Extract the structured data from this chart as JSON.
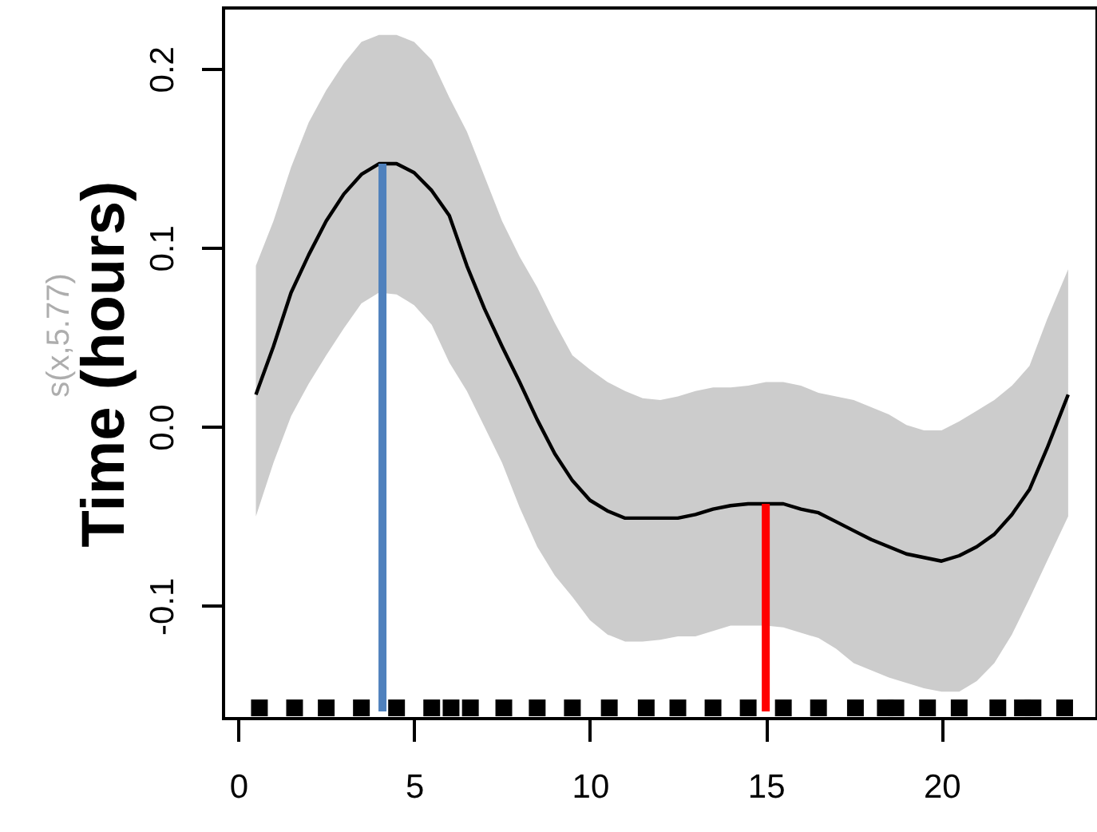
{
  "chart_data": {
    "type": "line",
    "ylabel": "Time (hours)",
    "annotations": [
      "s(x,5.77)"
    ],
    "xlim": [
      -0.42,
      24.42
    ],
    "xticks": [
      0,
      5,
      10,
      15,
      20
    ],
    "ylim": [
      -0.163,
      0.234
    ],
    "yticks": [
      {
        "value": -0.1,
        "label": "-0.1"
      },
      {
        "value": 0,
        "label": "0.0"
      },
      {
        "value": 0.1,
        "label": "0.1"
      },
      {
        "value": 0.2,
        "label": "0.2"
      }
    ],
    "grid": false,
    "line_style": "solid",
    "marker": "none",
    "series": [
      {
        "color": "#000000",
        "x": [
          0.5,
          1,
          1.5,
          2,
          2.5,
          3,
          3.5,
          4,
          4.5,
          5,
          5.5,
          6,
          6.5,
          7,
          7.5,
          8,
          8.5,
          9,
          9.5,
          10,
          10.5,
          11,
          11.5,
          12,
          12.5,
          13,
          13.5,
          14,
          14.5,
          15,
          15.5,
          16,
          16.5,
          17,
          17.5,
          18,
          18.5,
          19,
          19.5,
          20,
          20.5,
          21,
          21.5,
          22,
          22.5,
          23,
          23.6
        ],
        "values": [
          0.018,
          0.045,
          0.075,
          0.096,
          0.115,
          0.13,
          0.141,
          0.147,
          0.147,
          0.142,
          0.132,
          0.118,
          0.09,
          0.066,
          0.045,
          0.025,
          0.004,
          -0.015,
          -0.03,
          -0.041,
          -0.047,
          -0.051,
          -0.051,
          -0.051,
          -0.051,
          -0.049,
          -0.046,
          -0.044,
          -0.043,
          -0.043,
          -0.043,
          -0.046,
          -0.048,
          -0.053,
          -0.058,
          -0.063,
          -0.067,
          -0.071,
          -0.073,
          -0.075,
          -0.072,
          -0.067,
          -0.06,
          -0.049,
          -0.035,
          -0.012,
          0.018
        ],
        "upper": [
          0.09,
          0.115,
          0.145,
          0.17,
          0.188,
          0.203,
          0.215,
          0.219,
          0.219,
          0.215,
          0.205,
          0.184,
          0.165,
          0.14,
          0.115,
          0.095,
          0.078,
          0.058,
          0.04,
          0.032,
          0.025,
          0.02,
          0.016,
          0.015,
          0.017,
          0.02,
          0.022,
          0.022,
          0.023,
          0.025,
          0.025,
          0.023,
          0.019,
          0.017,
          0.015,
          0.011,
          0.007,
          0.001,
          -0.002,
          -0.002,
          0.003,
          0.009,
          0.015,
          0.023,
          0.034,
          0.06,
          0.088
        ],
        "lower": [
          -0.05,
          -0.02,
          0.006,
          0.024,
          0.04,
          0.055,
          0.069,
          0.075,
          0.074,
          0.068,
          0.057,
          0.036,
          0.02,
          0.0,
          -0.02,
          -0.045,
          -0.067,
          -0.083,
          -0.095,
          -0.108,
          -0.116,
          -0.12,
          -0.12,
          -0.119,
          -0.117,
          -0.117,
          -0.114,
          -0.111,
          -0.111,
          -0.111,
          -0.112,
          -0.115,
          -0.118,
          -0.124,
          -0.132,
          -0.136,
          -0.14,
          -0.143,
          -0.146,
          -0.148,
          -0.148,
          -0.142,
          -0.132,
          -0.116,
          -0.096,
          -0.075,
          -0.05
        ]
      },
      {
        "type": "scatter",
        "marker": "square",
        "color": "#000000",
        "x": [
          0.6,
          1.6,
          2.5,
          3.5,
          4.5,
          5.5,
          6.05,
          6.6,
          7.55,
          8.5,
          9.5,
          10.55,
          11.6,
          12.5,
          13.5,
          14.5,
          15.5,
          16.5,
          17.55,
          18.4,
          18.7,
          19.6,
          20.5,
          21.6,
          22.3,
          22.6,
          23.5
        ],
        "values": [
          -0.157,
          -0.157,
          -0.157,
          -0.157,
          -0.157,
          -0.157,
          -0.157,
          -0.157,
          -0.157,
          -0.157,
          -0.157,
          -0.157,
          -0.157,
          -0.157,
          -0.157,
          -0.157,
          -0.157,
          -0.157,
          -0.157,
          -0.157,
          -0.157,
          -0.157,
          -0.157,
          -0.157,
          -0.157,
          -0.157,
          -0.157
        ]
      },
      {
        "color": "#4f81bd",
        "x": [
          4.1,
          4.1
        ],
        "values": [
          -0.159,
          0.147
        ]
      },
      {
        "color": "#ff0000",
        "x": [
          15,
          15
        ],
        "values": [
          -0.159,
          -0.043
        ]
      }
    ]
  }
}
